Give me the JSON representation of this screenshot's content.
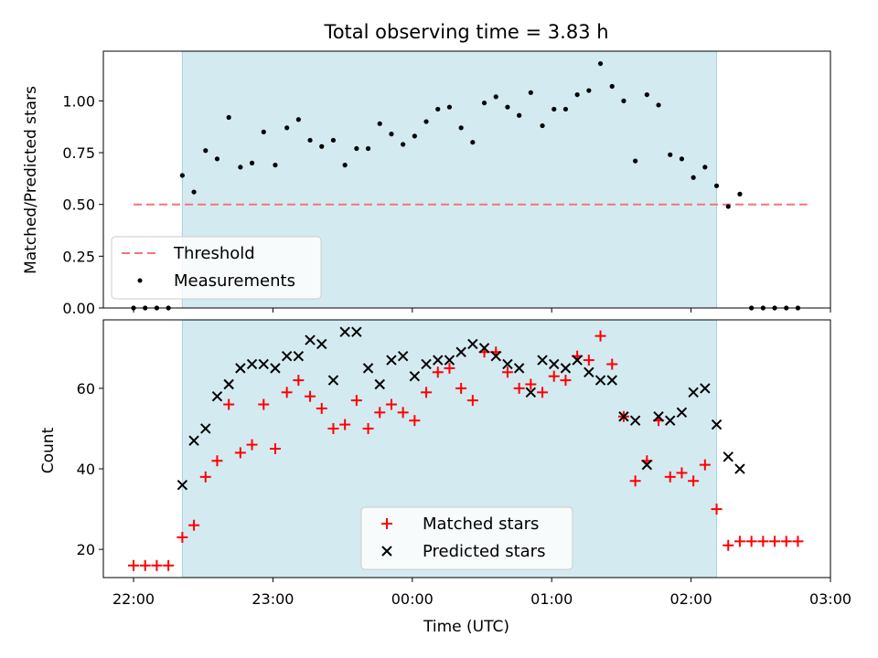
{
  "chart_data": [
    {
      "type": "scatter",
      "title": "Total observing time = 3.83 h",
      "ylabel": "Matched/Predicted stars",
      "xlabel": "",
      "x_range": [
        "21:47",
        "03:00"
      ],
      "ylim": [
        0,
        1.24
      ],
      "yticks": [
        "0.00",
        "0.25",
        "0.50",
        "0.75",
        "1.00"
      ],
      "xticks": [],
      "observing_window": [
        "22:21",
        "02:11"
      ],
      "colors": {
        "window": "#d4eaf1",
        "threshold": "#f07777",
        "points": "#000000"
      },
      "legend": {
        "placement": "lower-left",
        "entries": [
          "Threshold",
          "Measurements"
        ]
      },
      "threshold": {
        "name": "Threshold",
        "y": 0.5,
        "x_from": "22:00",
        "x_to": "02:50"
      },
      "series": [
        {
          "name": "Measurements",
          "points": [
            [
              "22:00",
              0.0
            ],
            [
              "22:05",
              0.0
            ],
            [
              "22:10",
              0.0
            ],
            [
              "22:15",
              0.0
            ],
            [
              "22:21",
              0.64
            ],
            [
              "22:26",
              0.56
            ],
            [
              "22:31",
              0.76
            ],
            [
              "22:36",
              0.72
            ],
            [
              "22:41",
              0.92
            ],
            [
              "22:46",
              0.68
            ],
            [
              "22:51",
              0.7
            ],
            [
              "22:56",
              0.85
            ],
            [
              "23:01",
              0.69
            ],
            [
              "23:06",
              0.87
            ],
            [
              "23:11",
              0.91
            ],
            [
              "23:16",
              0.81
            ],
            [
              "23:21",
              0.78
            ],
            [
              "23:26",
              0.81
            ],
            [
              "23:31",
              0.69
            ],
            [
              "23:36",
              0.77
            ],
            [
              "23:41",
              0.77
            ],
            [
              "23:46",
              0.89
            ],
            [
              "23:51",
              0.84
            ],
            [
              "23:56",
              0.79
            ],
            [
              "00:01",
              0.83
            ],
            [
              "00:06",
              0.9
            ],
            [
              "00:11",
              0.96
            ],
            [
              "00:16",
              0.97
            ],
            [
              "00:21",
              0.87
            ],
            [
              "00:26",
              0.8
            ],
            [
              "00:31",
              0.99
            ],
            [
              "00:36",
              1.02
            ],
            [
              "00:41",
              0.97
            ],
            [
              "00:46",
              0.93
            ],
            [
              "00:51",
              1.04
            ],
            [
              "00:56",
              0.88
            ],
            [
              "01:01",
              0.96
            ],
            [
              "01:06",
              0.96
            ],
            [
              "01:11",
              1.03
            ],
            [
              "01:16",
              1.05
            ],
            [
              "01:21",
              1.18
            ],
            [
              "01:26",
              1.07
            ],
            [
              "01:31",
              1.0
            ],
            [
              "01:36",
              0.71
            ],
            [
              "01:41",
              1.03
            ],
            [
              "01:46",
              0.98
            ],
            [
              "01:51",
              0.74
            ],
            [
              "01:56",
              0.72
            ],
            [
              "02:01",
              0.63
            ],
            [
              "02:06",
              0.68
            ],
            [
              "02:11",
              0.59
            ],
            [
              "02:16",
              0.49
            ],
            [
              "02:21",
              0.55
            ],
            [
              "02:26",
              0.0
            ],
            [
              "02:31",
              0.0
            ],
            [
              "02:36",
              0.0
            ],
            [
              "02:41",
              0.0
            ],
            [
              "02:46",
              0.0
            ]
          ]
        }
      ]
    },
    {
      "type": "scatter",
      "title": "",
      "ylabel": "Count",
      "xlabel": "Time (UTC)",
      "x_range": [
        "21:47",
        "03:00"
      ],
      "ylim": [
        13,
        77
      ],
      "yticks": [
        20,
        40,
        60
      ],
      "xticks": [
        "22:00",
        "23:00",
        "00:00",
        "01:00",
        "02:00",
        "03:00"
      ],
      "observing_window": [
        "22:21",
        "02:11"
      ],
      "colors": {
        "window": "#d4eaf1",
        "matched": "#ff0000",
        "predicted": "#000000"
      },
      "legend": {
        "placement": "lower-center",
        "entries": [
          "Matched stars",
          "Predicted stars"
        ]
      },
      "series": [
        {
          "name": "Matched stars",
          "marker": "+",
          "points": [
            [
              "22:00",
              16
            ],
            [
              "22:05",
              16
            ],
            [
              "22:10",
              16
            ],
            [
              "22:15",
              16
            ],
            [
              "22:21",
              23
            ],
            [
              "22:26",
              26
            ],
            [
              "22:31",
              38
            ],
            [
              "22:36",
              42
            ],
            [
              "22:41",
              56
            ],
            [
              "22:46",
              44
            ],
            [
              "22:51",
              46
            ],
            [
              "22:56",
              56
            ],
            [
              "23:01",
              45
            ],
            [
              "23:06",
              59
            ],
            [
              "23:11",
              62
            ],
            [
              "23:16",
              58
            ],
            [
              "23:21",
              55
            ],
            [
              "23:26",
              50
            ],
            [
              "23:31",
              51
            ],
            [
              "23:36",
              57
            ],
            [
              "23:41",
              50
            ],
            [
              "23:46",
              54
            ],
            [
              "23:51",
              56
            ],
            [
              "23:56",
              54
            ],
            [
              "00:01",
              52
            ],
            [
              "00:06",
              59
            ],
            [
              "00:11",
              64
            ],
            [
              "00:16",
              65
            ],
            [
              "00:21",
              60
            ],
            [
              "00:26",
              57
            ],
            [
              "00:31",
              69
            ],
            [
              "00:36",
              69
            ],
            [
              "00:41",
              64
            ],
            [
              "00:46",
              60
            ],
            [
              "00:51",
              61
            ],
            [
              "00:56",
              59
            ],
            [
              "01:01",
              63
            ],
            [
              "01:06",
              62
            ],
            [
              "01:11",
              68
            ],
            [
              "01:16",
              67
            ],
            [
              "01:21",
              73
            ],
            [
              "01:26",
              66
            ],
            [
              "01:31",
              53
            ],
            [
              "01:36",
              37
            ],
            [
              "01:41",
              42
            ],
            [
              "01:46",
              52
            ],
            [
              "01:51",
              38
            ],
            [
              "01:56",
              39
            ],
            [
              "02:01",
              37
            ],
            [
              "02:06",
              41
            ],
            [
              "02:11",
              30
            ],
            [
              "02:16",
              21
            ],
            [
              "02:21",
              22
            ],
            [
              "02:26",
              22
            ],
            [
              "02:31",
              22
            ],
            [
              "02:36",
              22
            ],
            [
              "02:41",
              22
            ],
            [
              "02:46",
              22
            ]
          ]
        },
        {
          "name": "Predicted stars",
          "marker": "x",
          "points": [
            [
              "22:21",
              36
            ],
            [
              "22:26",
              47
            ],
            [
              "22:31",
              50
            ],
            [
              "22:36",
              58
            ],
            [
              "22:41",
              61
            ],
            [
              "22:46",
              65
            ],
            [
              "22:51",
              66
            ],
            [
              "22:56",
              66
            ],
            [
              "23:01",
              65
            ],
            [
              "23:06",
              68
            ],
            [
              "23:11",
              68
            ],
            [
              "23:16",
              72
            ],
            [
              "23:21",
              71
            ],
            [
              "23:26",
              62
            ],
            [
              "23:31",
              74
            ],
            [
              "23:36",
              74
            ],
            [
              "23:41",
              65
            ],
            [
              "23:46",
              61
            ],
            [
              "23:51",
              67
            ],
            [
              "23:56",
              68
            ],
            [
              "00:01",
              63
            ],
            [
              "00:06",
              66
            ],
            [
              "00:11",
              67
            ],
            [
              "00:16",
              67
            ],
            [
              "00:21",
              69
            ],
            [
              "00:26",
              71
            ],
            [
              "00:31",
              70
            ],
            [
              "00:36",
              68
            ],
            [
              "00:41",
              66
            ],
            [
              "00:46",
              65
            ],
            [
              "00:51",
              59
            ],
            [
              "00:56",
              67
            ],
            [
              "01:01",
              66
            ],
            [
              "01:06",
              65
            ],
            [
              "01:11",
              67
            ],
            [
              "01:16",
              64
            ],
            [
              "01:21",
              62
            ],
            [
              "01:26",
              62
            ],
            [
              "01:31",
              53
            ],
            [
              "01:36",
              52
            ],
            [
              "01:41",
              41
            ],
            [
              "01:46",
              53
            ],
            [
              "01:51",
              52
            ],
            [
              "01:56",
              54
            ],
            [
              "02:01",
              59
            ],
            [
              "02:06",
              60
            ],
            [
              "02:11",
              51
            ],
            [
              "02:16",
              43
            ],
            [
              "02:21",
              40
            ]
          ]
        }
      ]
    }
  ]
}
